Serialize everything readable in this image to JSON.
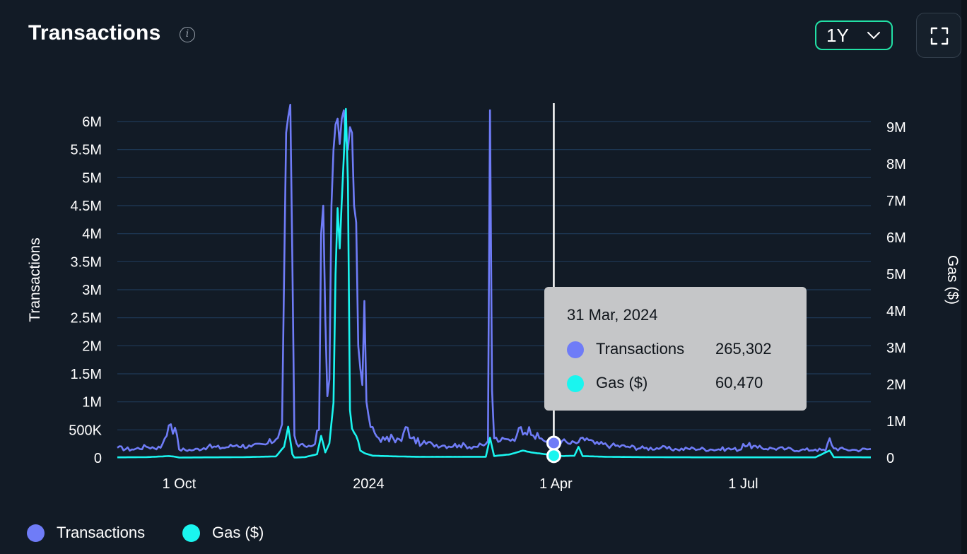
{
  "header": {
    "title": "Transactions"
  },
  "controls": {
    "range_label": "1Y"
  },
  "colors": {
    "transactions": "#6f7cf7",
    "gas": "#1af5ef",
    "grid": "#1f3a58",
    "crosshair": "#ffffff",
    "accent": "#22e0a5"
  },
  "icons": {
    "info": "info-icon",
    "chevron": "chevron-down-icon",
    "fullscreen": "fullscreen-icon"
  },
  "tooltip": {
    "date": "31 Mar, 2024",
    "rows": [
      {
        "label": "Transactions",
        "value": "265,302"
      },
      {
        "label": "Gas ($)",
        "value": "60,470"
      }
    ]
  },
  "legend": [
    {
      "label": "Transactions"
    },
    {
      "label": "Gas ($)"
    }
  ],
  "chart_data": {
    "type": "line",
    "x_start": "2023-09-01",
    "x_end": "2024-09-01",
    "x_tick_labels": [
      {
        "label": "1 Oct",
        "date": "2023-10-01"
      },
      {
        "label": "2024",
        "date": "2024-01-01"
      },
      {
        "label": "1 Apr",
        "date": "2024-04-01"
      },
      {
        "label": "1 Jul",
        "date": "2024-07-01"
      }
    ],
    "y_left": {
      "label": "Transactions",
      "min": 0,
      "max": 6000000,
      "ticks": [
        0,
        500000,
        1000000,
        1500000,
        2000000,
        2500000,
        3000000,
        3500000,
        4000000,
        4500000,
        5000000,
        5500000,
        6000000
      ],
      "tick_labels": [
        "0",
        "500K",
        "1M",
        "1.5M",
        "2M",
        "2.5M",
        "3M",
        "3.5M",
        "4M",
        "4.5M",
        "5M",
        "5.5M",
        "6M"
      ]
    },
    "y_right": {
      "label": "Gas ($)",
      "min": 0,
      "max": 9000000,
      "ticks": [
        0,
        1000000,
        2000000,
        3000000,
        4000000,
        5000000,
        6000000,
        7000000,
        8000000,
        9000000
      ],
      "tick_labels": [
        "0",
        "1M",
        "2M",
        "3M",
        "4M",
        "5M",
        "6M",
        "7M",
        "8M",
        "9M"
      ]
    },
    "grid": true,
    "legend_position": "bottom-left",
    "highlight": {
      "date": "2024-03-31",
      "transactions": 265302,
      "gas": 60470
    },
    "series": [
      {
        "name": "Transactions",
        "axis": "left",
        "points": [
          [
            "2023-09-01",
            180000
          ],
          [
            "2023-09-08",
            150000
          ],
          [
            "2023-09-15",
            200000
          ],
          [
            "2023-09-22",
            180000
          ],
          [
            "2023-09-26",
            580000
          ],
          [
            "2023-09-27",
            600000
          ],
          [
            "2023-09-28",
            430000
          ],
          [
            "2023-09-29",
            540000
          ],
          [
            "2023-10-01",
            150000
          ],
          [
            "2023-10-08",
            140000
          ],
          [
            "2023-10-15",
            200000
          ],
          [
            "2023-10-22",
            180000
          ],
          [
            "2023-10-29",
            230000
          ],
          [
            "2023-11-05",
            200000
          ],
          [
            "2023-11-12",
            240000
          ],
          [
            "2023-11-17",
            330000
          ],
          [
            "2023-11-20",
            600000
          ],
          [
            "2023-11-22",
            5800000
          ],
          [
            "2023-11-24",
            6300000
          ],
          [
            "2023-11-25",
            3500000
          ],
          [
            "2023-11-26",
            400000
          ],
          [
            "2023-11-28",
            200000
          ],
          [
            "2023-12-01",
            210000
          ],
          [
            "2023-12-05",
            220000
          ],
          [
            "2023-12-08",
            500000
          ],
          [
            "2023-12-09",
            4000000
          ],
          [
            "2023-12-10",
            4500000
          ],
          [
            "2023-12-11",
            2500000
          ],
          [
            "2023-12-12",
            1100000
          ],
          [
            "2023-12-13",
            1400000
          ],
          [
            "2023-12-14",
            4500000
          ],
          [
            "2023-12-15",
            5500000
          ],
          [
            "2023-12-16",
            5950000
          ],
          [
            "2023-12-17",
            6050000
          ],
          [
            "2023-12-18",
            5600000
          ],
          [
            "2023-12-19",
            6050000
          ],
          [
            "2023-12-20",
            6200000
          ],
          [
            "2023-12-21",
            5700000
          ],
          [
            "2023-12-22",
            5500000
          ],
          [
            "2023-12-23",
            5900000
          ],
          [
            "2023-12-24",
            5800000
          ],
          [
            "2023-12-25",
            4500000
          ],
          [
            "2023-12-26",
            4200000
          ],
          [
            "2023-12-27",
            2000000
          ],
          [
            "2023-12-28",
            1600000
          ],
          [
            "2023-12-29",
            1300000
          ],
          [
            "2023-12-30",
            2800000
          ],
          [
            "2023-12-31",
            1000000
          ],
          [
            "2024-01-02",
            550000
          ],
          [
            "2024-01-05",
            380000
          ],
          [
            "2024-01-09",
            320000
          ],
          [
            "2024-01-13",
            350000
          ],
          [
            "2024-01-17",
            300000
          ],
          [
            "2024-01-19",
            550000
          ],
          [
            "2024-01-22",
            350000
          ],
          [
            "2024-01-27",
            250000
          ],
          [
            "2024-02-01",
            250000
          ],
          [
            "2024-02-07",
            220000
          ],
          [
            "2024-02-14",
            230000
          ],
          [
            "2024-02-21",
            200000
          ],
          [
            "2024-02-26",
            220000
          ],
          [
            "2024-02-28",
            300000
          ],
          [
            "2024-02-29",
            6200000
          ],
          [
            "2024-03-01",
            1200000
          ],
          [
            "2024-03-02",
            350000
          ],
          [
            "2024-03-05",
            300000
          ],
          [
            "2024-03-09",
            330000
          ],
          [
            "2024-03-13",
            400000
          ],
          [
            "2024-03-15",
            550000
          ],
          [
            "2024-03-17",
            450000
          ],
          [
            "2024-03-19",
            550000
          ],
          [
            "2024-03-21",
            400000
          ],
          [
            "2024-03-24",
            350000
          ],
          [
            "2024-03-28",
            300000
          ],
          [
            "2024-03-31",
            265302
          ],
          [
            "2024-04-04",
            300000
          ],
          [
            "2024-04-08",
            250000
          ],
          [
            "2024-04-12",
            280000
          ],
          [
            "2024-04-16",
            350000
          ],
          [
            "2024-04-20",
            250000
          ],
          [
            "2024-04-28",
            220000
          ],
          [
            "2024-05-06",
            200000
          ],
          [
            "2024-05-14",
            170000
          ],
          [
            "2024-05-22",
            180000
          ],
          [
            "2024-05-30",
            150000
          ],
          [
            "2024-06-07",
            170000
          ],
          [
            "2024-06-15",
            150000
          ],
          [
            "2024-06-23",
            160000
          ],
          [
            "2024-06-30",
            150000
          ],
          [
            "2024-07-01",
            250000
          ],
          [
            "2024-07-08",
            180000
          ],
          [
            "2024-07-15",
            170000
          ],
          [
            "2024-07-22",
            160000
          ],
          [
            "2024-07-29",
            140000
          ],
          [
            "2024-08-05",
            150000
          ],
          [
            "2024-08-10",
            130000
          ],
          [
            "2024-08-12",
            350000
          ],
          [
            "2024-08-14",
            170000
          ],
          [
            "2024-08-20",
            150000
          ],
          [
            "2024-08-25",
            140000
          ],
          [
            "2024-09-01",
            160000
          ]
        ]
      },
      {
        "name": "Gas ($)",
        "axis": "right",
        "points": [
          [
            "2023-09-01",
            15000
          ],
          [
            "2023-09-15",
            20000
          ],
          [
            "2023-09-26",
            50000
          ],
          [
            "2023-09-28",
            40000
          ],
          [
            "2023-10-01",
            10000
          ],
          [
            "2023-10-15",
            15000
          ],
          [
            "2023-11-01",
            20000
          ],
          [
            "2023-11-17",
            40000
          ],
          [
            "2023-11-21",
            300000
          ],
          [
            "2023-11-23",
            850000
          ],
          [
            "2023-11-25",
            100000
          ],
          [
            "2023-11-26",
            10000
          ],
          [
            "2023-12-01",
            20000
          ],
          [
            "2023-12-07",
            100000
          ],
          [
            "2023-12-09",
            600000
          ],
          [
            "2023-12-11",
            150000
          ],
          [
            "2023-12-13",
            400000
          ],
          [
            "2023-12-15",
            1500000
          ],
          [
            "2023-12-16",
            5000000
          ],
          [
            "2023-12-17",
            6800000
          ],
          [
            "2023-12-18",
            5700000
          ],
          [
            "2023-12-19",
            7000000
          ],
          [
            "2023-12-20",
            8200000
          ],
          [
            "2023-12-21",
            9500000
          ],
          [
            "2023-12-22",
            7500000
          ],
          [
            "2023-12-23",
            1300000
          ],
          [
            "2023-12-24",
            800000
          ],
          [
            "2023-12-26",
            600000
          ],
          [
            "2023-12-27",
            450000
          ],
          [
            "2023-12-28",
            200000
          ],
          [
            "2023-12-30",
            130000
          ],
          [
            "2024-01-03",
            60000
          ],
          [
            "2024-01-15",
            40000
          ],
          [
            "2024-01-25",
            30000
          ],
          [
            "2024-02-10",
            30000
          ],
          [
            "2024-02-27",
            30000
          ],
          [
            "2024-02-29",
            550000
          ],
          [
            "2024-03-02",
            50000
          ],
          [
            "2024-03-10",
            100000
          ],
          [
            "2024-03-16",
            200000
          ],
          [
            "2024-03-20",
            150000
          ],
          [
            "2024-03-27",
            100000
          ],
          [
            "2024-03-31",
            60470
          ],
          [
            "2024-04-05",
            50000
          ],
          [
            "2024-04-10",
            60000
          ],
          [
            "2024-04-12",
            300000
          ],
          [
            "2024-04-14",
            50000
          ],
          [
            "2024-04-25",
            30000
          ],
          [
            "2024-05-15",
            20000
          ],
          [
            "2024-06-15",
            15000
          ],
          [
            "2024-07-15",
            15000
          ],
          [
            "2024-08-05",
            15000
          ],
          [
            "2024-08-12",
            200000
          ],
          [
            "2024-08-14",
            20000
          ],
          [
            "2024-09-01",
            15000
          ]
        ]
      }
    ]
  }
}
